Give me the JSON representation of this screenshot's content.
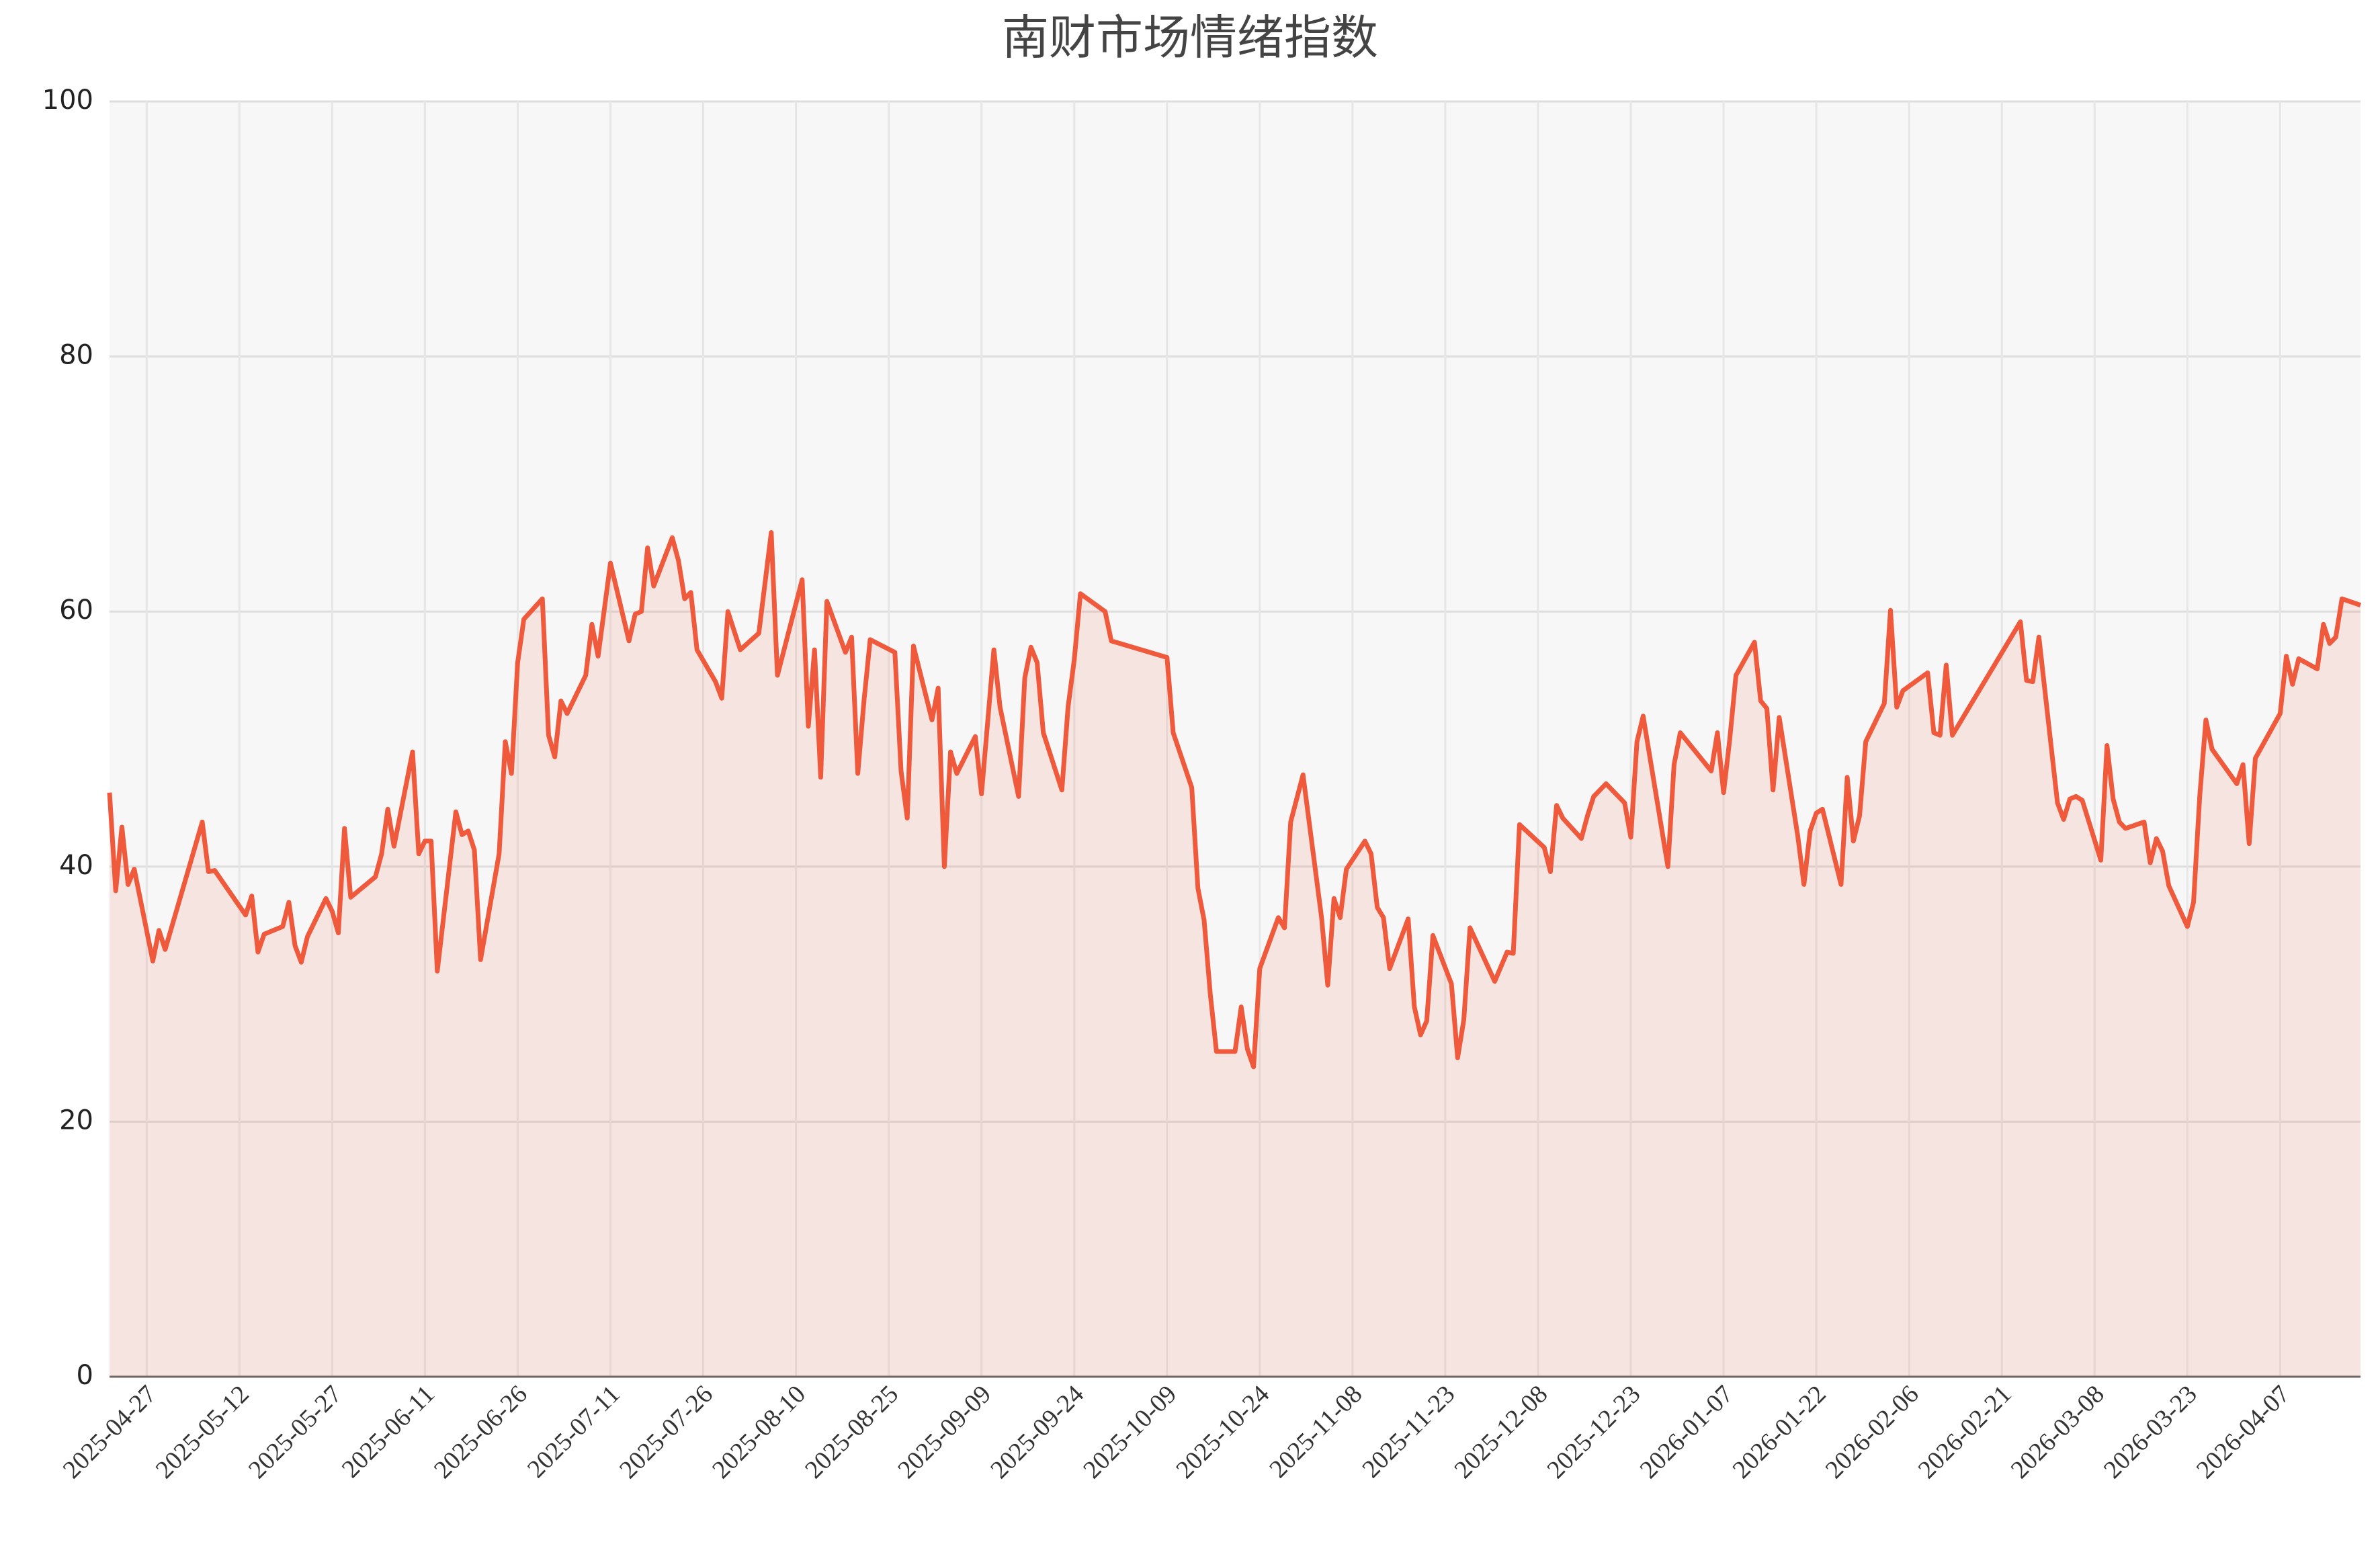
{
  "chart_data": {
    "type": "line",
    "title": "南财市场情绪指数",
    "x": [
      "2025-04-21",
      "2025-04-22",
      "2025-04-23",
      "2025-04-24",
      "2025-04-25",
      "2025-04-28",
      "2025-04-29",
      "2025-04-30",
      "2025-05-06",
      "2025-05-07",
      "2025-05-08",
      "2025-05-13",
      "2025-05-14",
      "2025-05-15",
      "2025-05-16",
      "2025-05-19",
      "2025-05-20",
      "2025-05-21",
      "2025-05-22",
      "2025-05-23",
      "2025-05-26",
      "2025-05-27",
      "2025-05-28",
      "2025-05-29",
      "2025-05-30",
      "2025-06-03",
      "2025-06-04",
      "2025-06-05",
      "2025-06-06",
      "2025-06-09",
      "2025-06-10",
      "2025-06-11",
      "2025-06-12",
      "2025-06-13",
      "2025-06-16",
      "2025-06-17",
      "2025-06-18",
      "2025-06-19",
      "2025-06-20",
      "2025-06-23",
      "2025-06-24",
      "2025-06-25",
      "2025-06-26",
      "2025-06-27",
      "2025-06-30",
      "2025-07-01",
      "2025-07-02",
      "2025-07-03",
      "2025-07-04",
      "2025-07-07",
      "2025-07-08",
      "2025-07-09",
      "2025-07-11",
      "2025-07-14",
      "2025-07-15",
      "2025-07-16",
      "2025-07-17",
      "2025-07-18",
      "2025-07-21",
      "2025-07-22",
      "2025-07-23",
      "2025-07-24",
      "2025-07-25",
      "2025-07-28",
      "2025-07-29",
      "2025-07-30",
      "2025-08-01",
      "2025-08-04",
      "2025-08-06",
      "2025-08-07",
      "2025-08-11",
      "2025-08-12",
      "2025-08-13",
      "2025-08-14",
      "2025-08-15",
      "2025-08-18",
      "2025-08-19",
      "2025-08-20",
      "2025-08-21",
      "2025-08-22",
      "2025-08-26",
      "2025-08-27",
      "2025-08-28",
      "2025-08-29",
      "2025-09-01",
      "2025-09-02",
      "2025-09-03",
      "2025-09-04",
      "2025-09-05",
      "2025-09-08",
      "2025-09-09",
      "2025-09-11",
      "2025-09-12",
      "2025-09-15",
      "2025-09-16",
      "2025-09-17",
      "2025-09-18",
      "2025-09-19",
      "2025-09-22",
      "2025-09-23",
      "2025-09-24",
      "2025-09-25",
      "2025-09-29",
      "2025-09-30",
      "2025-10-09",
      "2025-10-10",
      "2025-10-13",
      "2025-10-14",
      "2025-10-15",
      "2025-10-16",
      "2025-10-17",
      "2025-10-20",
      "2025-10-21",
      "2025-10-22",
      "2025-10-23",
      "2025-10-24",
      "2025-10-27",
      "2025-10-28",
      "2025-10-29",
      "2025-10-31",
      "2025-11-03",
      "2025-11-04",
      "2025-11-05",
      "2025-11-06",
      "2025-11-07",
      "2025-11-10",
      "2025-11-11",
      "2025-11-12",
      "2025-11-13",
      "2025-11-14",
      "2025-11-17",
      "2025-11-18",
      "2025-11-19",
      "2025-11-20",
      "2025-11-21",
      "2025-11-24",
      "2025-11-25",
      "2025-11-26",
      "2025-11-27",
      "2025-12-01",
      "2025-12-03",
      "2025-12-04",
      "2025-12-05",
      "2025-12-09",
      "2025-12-10",
      "2025-12-11",
      "2025-12-12",
      "2025-12-15",
      "2025-12-16",
      "2025-12-17",
      "2025-12-19",
      "2025-12-22",
      "2025-12-23",
      "2025-12-24",
      "2025-12-25",
      "2025-12-29",
      "2025-12-30",
      "2025-12-31",
      "2026-01-05",
      "2026-01-06",
      "2026-01-07",
      "2026-01-08",
      "2026-01-09",
      "2026-01-12",
      "2026-01-13",
      "2026-01-14",
      "2026-01-15",
      "2026-01-16",
      "2026-01-19",
      "2026-01-20",
      "2026-01-21",
      "2026-01-22",
      "2026-01-23",
      "2026-01-26",
      "2026-01-27",
      "2026-01-28",
      "2026-01-29",
      "2026-01-30",
      "2026-02-02",
      "2026-02-03",
      "2026-02-04",
      "2026-02-05",
      "2026-02-09",
      "2026-02-10",
      "2026-02-11",
      "2026-02-12",
      "2026-02-13",
      "2026-02-24",
      "2026-02-25",
      "2026-02-26",
      "2026-02-27",
      "2026-03-02",
      "2026-03-03",
      "2026-03-04",
      "2026-03-05",
      "2026-03-06",
      "2026-03-09",
      "2026-03-10",
      "2026-03-11",
      "2026-03-12",
      "2026-03-13",
      "2026-03-16",
      "2026-03-17",
      "2026-03-18",
      "2026-03-19",
      "2026-03-20",
      "2026-03-23",
      "2026-03-24",
      "2026-03-25",
      "2026-03-26",
      "2026-03-27",
      "2026-03-31",
      "2026-04-01",
      "2026-04-02",
      "2026-04-03",
      "2026-04-07",
      "2026-04-08",
      "2026-04-09",
      "2026-04-10",
      "2026-04-13",
      "2026-04-14",
      "2026-04-15",
      "2026-04-16",
      "2026-04-17",
      "2026-04-20"
    ],
    "values": [
      45.8,
      38.1,
      43.1,
      38.6,
      39.8,
      32.6,
      35,
      33.5,
      43.5,
      39.6,
      39.7,
      36.2,
      37.7,
      33.3,
      34.7,
      35.3,
      37.2,
      33.8,
      32.5,
      34.5,
      37.5,
      36.5,
      34.8,
      43,
      37.6,
      39.2,
      41,
      44.5,
      41.6,
      49,
      41,
      42,
      42,
      31.8,
      44.3,
      42.5,
      42.8,
      41.3,
      32.7,
      41,
      49.8,
      47.3,
      56,
      59.4,
      61,
      50.3,
      48.6,
      53,
      52,
      55,
      59,
      56.5,
      63.8,
      57.7,
      59.8,
      60,
      65,
      62,
      65.8,
      64,
      61,
      61.5,
      57,
      54.5,
      53.2,
      60,
      57,
      58.3,
      66.2,
      55,
      62.5,
      51,
      57,
      47,
      60.8,
      56.8,
      58,
      47.3,
      53,
      57.8,
      56.8,
      47.5,
      43.8,
      57.3,
      51.5,
      54,
      40,
      49,
      47.3,
      50.2,
      45.7,
      57,
      52.5,
      45.5,
      54.8,
      57.2,
      56,
      50.5,
      46,
      52.5,
      56.2,
      61.4,
      60,
      57.7,
      56.4,
      50.5,
      46.2,
      38.3,
      35.8,
      30,
      25.5,
      25.5,
      29,
      25.7,
      24.3,
      32,
      36,
      35.2,
      43.5,
      47.2,
      36,
      30.7,
      37.5,
      36,
      39.8,
      42,
      41,
      36.8,
      36,
      32,
      35.9,
      29,
      26.8,
      27.9,
      34.6,
      30.8,
      25,
      28,
      35.2,
      31,
      33.3,
      33.2,
      43.3,
      41.5,
      39.6,
      44.8,
      43.8,
      42.2,
      44,
      45.5,
      46.5,
      45,
      42.3,
      49.8,
      51.8,
      40,
      48,
      50.5,
      47.5,
      50.5,
      45.8,
      50,
      55,
      57.6,
      53,
      52.4,
      46,
      51.7,
      42.4,
      38.6,
      42.8,
      44.2,
      44.5,
      38.6,
      47,
      42,
      44,
      49.8,
      52.8,
      60.1,
      52.5,
      53.8,
      55.2,
      50.5,
      50.3,
      55.8,
      50.3,
      59.2,
      54.6,
      54.5,
      58,
      45,
      43.7,
      45.3,
      45.5,
      45.2,
      40.5,
      49.5,
      45.3,
      43.5,
      43,
      43.5,
      40.3,
      42.2,
      41.2,
      38.5,
      35.3,
      37.2,
      45.5,
      51.5,
      49.2,
      46.5,
      48,
      41.8,
      48.5,
      52,
      56.5,
      54.3,
      56.3,
      55.5,
      59,
      57.5,
      58,
      61,
      60.5
    ],
    "color": "#f05a3c",
    "xlim": [
      "2025-04-21",
      "2026-04-20"
    ],
    "xticks": [
      "2025-04-27",
      "2025-05-12",
      "2025-05-27",
      "2025-06-11",
      "2025-06-26",
      "2025-07-11",
      "2025-07-26",
      "2025-08-10",
      "2025-08-25",
      "2025-09-09",
      "2025-09-24",
      "2025-10-09",
      "2025-10-24",
      "2025-11-08",
      "2025-11-23",
      "2025-12-08",
      "2025-12-23",
      "2026-01-07",
      "2026-01-22",
      "2026-02-06",
      "2026-02-21",
      "2026-03-08",
      "2026-03-23",
      "2026-04-07"
    ],
    "ylim": [
      0,
      100
    ],
    "yticks": [
      0,
      20,
      40,
      60,
      80,
      100
    ],
    "grid": true
  }
}
